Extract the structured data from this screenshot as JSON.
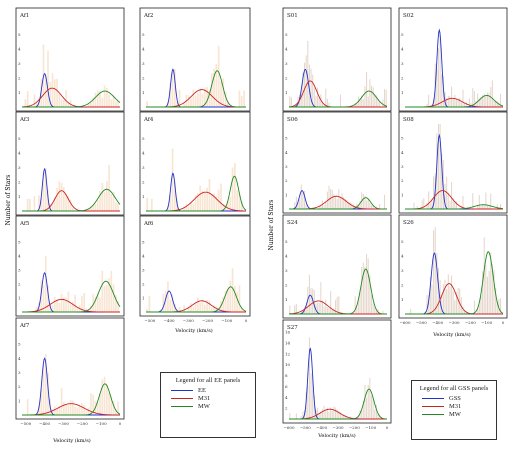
{
  "figure": {
    "colors": {
      "EE": "#2233cc",
      "GSS": "#2233cc",
      "M31": "#cc2222",
      "MW": "#228822",
      "hist": "#f5dcc4",
      "hist_gss": "#dcc8b8"
    }
  },
  "left_ylabel": "Number of Stars",
  "right_ylabel": "Number of Stars",
  "left_xlabel": "Velocity (km/s)",
  "mid_xlabel": "Velocity (km/s)",
  "right_col1_xlabel": "Velocity (km/s)",
  "right_col2_xlabel": "Velocity (km/s)",
  "legend_left": {
    "title": "Legend for all EE panels",
    "items": [
      {
        "label": "EE",
        "color": "#2233cc"
      },
      {
        "label": "M31",
        "color": "#cc2222"
      },
      {
        "label": "MW",
        "color": "#228822"
      }
    ]
  },
  "legend_right": {
    "title": "Legend for all GSS panels",
    "items": [
      {
        "label": "GSS",
        "color": "#2233cc"
      },
      {
        "label": "M31",
        "color": "#cc2222"
      },
      {
        "label": "MW",
        "color": "#228822"
      }
    ]
  },
  "chart_data": [
    {
      "name": "Af1",
      "type": "histogram+gaussians",
      "xlim": [
        -520,
        0
      ],
      "ylim": [
        0,
        6
      ],
      "components": [
        {
          "label": "EE",
          "mu": -400,
          "sigma": 15,
          "amp": 2.3
        },
        {
          "label": "M31",
          "mu": -360,
          "sigma": 50,
          "amp": 1.3
        },
        {
          "label": "MW",
          "mu": -80,
          "sigma": 50,
          "amp": 1.1
        }
      ]
    },
    {
      "name": "Af2",
      "type": "histogram+gaussians",
      "xlim": [
        -520,
        0
      ],
      "ylim": [
        0,
        6
      ],
      "components": [
        {
          "label": "EE",
          "mu": -380,
          "sigma": 12,
          "amp": 2.6
        },
        {
          "label": "M31",
          "mu": -230,
          "sigma": 55,
          "amp": 1.2
        },
        {
          "label": "MW",
          "mu": -150,
          "sigma": 28,
          "amp": 2.5
        }
      ]
    },
    {
      "name": "Af3",
      "type": "histogram+gaussians",
      "xlim": [
        -520,
        0
      ],
      "ylim": [
        0,
        6
      ],
      "components": [
        {
          "label": "EE",
          "mu": -400,
          "sigma": 12,
          "amp": 2.9
        },
        {
          "label": "M31",
          "mu": -310,
          "sigma": 35,
          "amp": 1.4
        },
        {
          "label": "MW",
          "mu": -70,
          "sigma": 45,
          "amp": 1.5
        }
      ]
    },
    {
      "name": "Af4",
      "type": "histogram+gaussians",
      "xlim": [
        -520,
        0
      ],
      "ylim": [
        0,
        6
      ],
      "components": [
        {
          "label": "EE",
          "mu": -380,
          "sigma": 12,
          "amp": 2.6
        },
        {
          "label": "M31",
          "mu": -210,
          "sigma": 60,
          "amp": 1.3
        },
        {
          "label": "MW",
          "mu": -60,
          "sigma": 22,
          "amp": 2.4
        }
      ]
    },
    {
      "name": "Af5",
      "type": "histogram+gaussians",
      "xlim": [
        -520,
        0
      ],
      "ylim": [
        0,
        6
      ],
      "components": [
        {
          "label": "EE",
          "mu": -400,
          "sigma": 15,
          "amp": 2.8
        },
        {
          "label": "M31",
          "mu": -310,
          "sigma": 60,
          "amp": 0.9
        },
        {
          "label": "MW",
          "mu": -75,
          "sigma": 40,
          "amp": 2.2
        }
      ]
    },
    {
      "name": "Af6",
      "type": "histogram+gaussians",
      "xlim": [
        -520,
        0
      ],
      "ylim": [
        0,
        6
      ],
      "components": [
        {
          "label": "EE",
          "mu": -400,
          "sigma": 18,
          "amp": 1.5
        },
        {
          "label": "M31",
          "mu": -230,
          "sigma": 50,
          "amp": 0.8
        },
        {
          "label": "MW",
          "mu": -80,
          "sigma": 30,
          "amp": 1.8
        }
      ],
      "xticks": [
        -500,
        -400,
        -300,
        -200,
        -100,
        0
      ]
    },
    {
      "name": "Af7",
      "type": "histogram+gaussians",
      "xlim": [
        -520,
        0
      ],
      "ylim": [
        0,
        6
      ],
      "components": [
        {
          "label": "EE",
          "mu": -400,
          "sigma": 15,
          "amp": 4.0
        },
        {
          "label": "M31",
          "mu": -260,
          "sigma": 70,
          "amp": 0.8
        },
        {
          "label": "MW",
          "mu": -80,
          "sigma": 30,
          "amp": 2.2
        }
      ],
      "yticks": [
        1,
        2,
        3,
        4,
        5
      ],
      "xticks": [
        -500,
        -400,
        -300,
        -200,
        -100,
        0
      ]
    },
    {
      "name": "S01",
      "type": "histogram+gaussians",
      "xlim": [
        -600,
        0
      ],
      "ylim": [
        0,
        6
      ],
      "components": [
        {
          "label": "GSS",
          "mu": -500,
          "sigma": 20,
          "amp": 2.6
        },
        {
          "label": "M31",
          "mu": -470,
          "sigma": 40,
          "amp": 1.8
        },
        {
          "label": "MW",
          "mu": -110,
          "sigma": 45,
          "amp": 1.1
        }
      ]
    },
    {
      "name": "S02",
      "type": "histogram+gaussians",
      "xlim": [
        -600,
        0
      ],
      "ylim": [
        0,
        6
      ],
      "components": [
        {
          "label": "GSS",
          "mu": -390,
          "sigma": 15,
          "amp": 5.3
        },
        {
          "label": "M31",
          "mu": -310,
          "sigma": 60,
          "amp": 0.6
        },
        {
          "label": "MW",
          "mu": -100,
          "sigma": 45,
          "amp": 0.8
        }
      ]
    },
    {
      "name": "S06",
      "type": "histogram+gaussians",
      "xlim": [
        -600,
        0
      ],
      "ylim": [
        0,
        6
      ],
      "components": [
        {
          "label": "GSS",
          "mu": -520,
          "sigma": 18,
          "amp": 1.3
        },
        {
          "label": "M31",
          "mu": -310,
          "sigma": 60,
          "amp": 0.9
        },
        {
          "label": "MW",
          "mu": -130,
          "sigma": 30,
          "amp": 0.8
        }
      ]
    },
    {
      "name": "S08",
      "type": "histogram+gaussians",
      "xlim": [
        -600,
        0
      ],
      "ylim": [
        0,
        6
      ],
      "components": [
        {
          "label": "GSS",
          "mu": -390,
          "sigma": 15,
          "amp": 5.2
        },
        {
          "label": "M31",
          "mu": -370,
          "sigma": 55,
          "amp": 1.3
        },
        {
          "label": "MW",
          "mu": -120,
          "sigma": 55,
          "amp": 0.3
        }
      ]
    },
    {
      "name": "S24",
      "type": "histogram+gaussians",
      "xlim": [
        -600,
        0
      ],
      "ylim": [
        0,
        6
      ],
      "components": [
        {
          "label": "GSS",
          "mu": -470,
          "sigma": 20,
          "amp": 1.3
        },
        {
          "label": "M31",
          "mu": -420,
          "sigma": 60,
          "amp": 0.9
        },
        {
          "label": "MW",
          "mu": -130,
          "sigma": 30,
          "amp": 3.1
        }
      ]
    },
    {
      "name": "S26",
      "type": "histogram+gaussians",
      "xlim": [
        -600,
        0
      ],
      "ylim": [
        0,
        6
      ],
      "components": [
        {
          "label": "GSS",
          "mu": -420,
          "sigma": 20,
          "amp": 4.2
        },
        {
          "label": "M31",
          "mu": -330,
          "sigma": 45,
          "amp": 2.1
        },
        {
          "label": "MW",
          "mu": -90,
          "sigma": 30,
          "amp": 4.3
        }
      ],
      "xticks": [
        -600,
        -500,
        -400,
        -300,
        -200,
        -100,
        0
      ]
    },
    {
      "name": "S27",
      "type": "histogram+gaussians",
      "xlim": [
        -600,
        0
      ],
      "ylim": [
        0,
        16
      ],
      "components": [
        {
          "label": "GSS",
          "mu": -470,
          "sigma": 15,
          "amp": 13
        },
        {
          "label": "M31",
          "mu": -350,
          "sigma": 60,
          "amp": 1.8
        },
        {
          "label": "MW",
          "mu": -110,
          "sigma": 30,
          "amp": 5.5
        }
      ],
      "yticks": [
        2,
        4,
        6,
        8,
        10,
        12,
        14,
        16
      ],
      "xticks": [
        -600,
        -500,
        -400,
        -300,
        -200,
        -100,
        0
      ]
    }
  ]
}
